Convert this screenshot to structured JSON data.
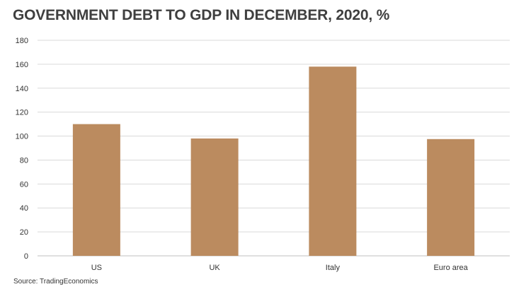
{
  "chart_data": {
    "type": "bar",
    "title": "GOVERNMENT DEBT TO GDP IN DECEMBER, 2020, %",
    "categories": [
      "US",
      "UK",
      "Italy",
      "Euro area"
    ],
    "values": [
      110,
      98,
      158,
      97.5
    ],
    "ylim": [
      0,
      180
    ],
    "yticks": [
      0,
      20,
      40,
      60,
      80,
      100,
      120,
      140,
      160,
      180
    ],
    "xlabel": "",
    "ylabel": "",
    "grid": true,
    "bar_color": "#bb8b5f",
    "grid_color": "#d9d9d9"
  },
  "source": "Source: TradingEconomics"
}
